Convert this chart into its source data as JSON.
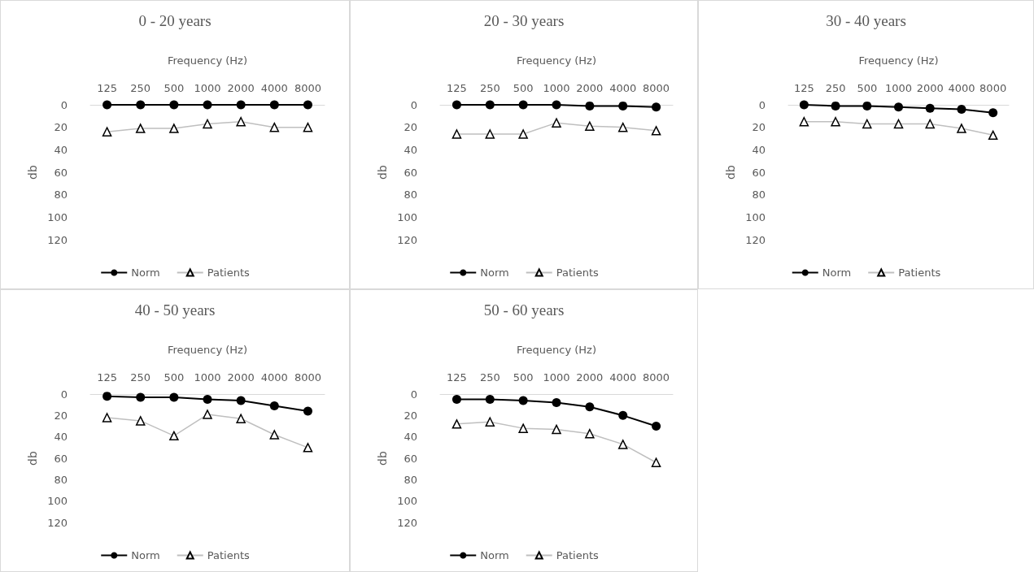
{
  "chart_data": [
    {
      "type": "line",
      "title": "0 - 20 years",
      "xlabel": "Frequency (Hz)",
      "ylabel": "db",
      "categories": [
        "125",
        "250",
        "500",
        "1000",
        "2000",
        "4000",
        "8000"
      ],
      "ylim": [
        120,
        0
      ],
      "yticks": [
        0,
        20,
        40,
        60,
        80,
        100,
        120
      ],
      "legend": "bottom",
      "series": [
        {
          "name": "Norm",
          "color": "#000000",
          "marker": "circle",
          "values": [
            0,
            0,
            0,
            0,
            0,
            0,
            0
          ]
        },
        {
          "name": "Patients",
          "color": "#bfbfbf",
          "marker": "triangle",
          "values": [
            24,
            21,
            21,
            17,
            15,
            20,
            20
          ]
        }
      ]
    },
    {
      "type": "line",
      "title": "20 - 30 years",
      "xlabel": "Frequency (Hz)",
      "ylabel": "db",
      "categories": [
        "125",
        "250",
        "500",
        "1000",
        "2000",
        "4000",
        "8000"
      ],
      "ylim": [
        120,
        0
      ],
      "yticks": [
        0,
        20,
        40,
        60,
        80,
        100,
        120
      ],
      "legend": "bottom",
      "series": [
        {
          "name": "Norm",
          "color": "#000000",
          "marker": "circle",
          "values": [
            0,
            0,
            0,
            0,
            1,
            1,
            2
          ]
        },
        {
          "name": "Patients",
          "color": "#bfbfbf",
          "marker": "triangle",
          "values": [
            26,
            26,
            26,
            16,
            19,
            20,
            23
          ]
        }
      ]
    },
    {
      "type": "line",
      "title": "30 - 40 years",
      "xlabel": "Frequency (Hz)",
      "ylabel": "db",
      "categories": [
        "125",
        "250",
        "500",
        "1000",
        "2000",
        "4000",
        "8000"
      ],
      "ylim": [
        120,
        0
      ],
      "yticks": [
        0,
        20,
        40,
        60,
        80,
        100,
        120
      ],
      "legend": "bottom",
      "series": [
        {
          "name": "Norm",
          "color": "#000000",
          "marker": "circle",
          "values": [
            0,
            1,
            1,
            2,
            3,
            4,
            7
          ]
        },
        {
          "name": "Patients",
          "color": "#bfbfbf",
          "marker": "triangle",
          "values": [
            15,
            15,
            17,
            17,
            17,
            21,
            27
          ]
        }
      ]
    },
    {
      "type": "line",
      "title": "40 - 50 years",
      "xlabel": "Frequency (Hz)",
      "ylabel": "db",
      "categories": [
        "125",
        "250",
        "500",
        "1000",
        "2000",
        "4000",
        "8000"
      ],
      "ylim": [
        120,
        0
      ],
      "yticks": [
        0,
        20,
        40,
        60,
        80,
        100,
        120
      ],
      "legend": "bottom",
      "series": [
        {
          "name": "Norm",
          "color": "#000000",
          "marker": "circle",
          "values": [
            2,
            3,
            3,
            5,
            6,
            11,
            16
          ]
        },
        {
          "name": "Patients",
          "color": "#bfbfbf",
          "marker": "triangle",
          "values": [
            22,
            25,
            39,
            19,
            23,
            38,
            50
          ]
        }
      ]
    },
    {
      "type": "line",
      "title": "50 - 60 years",
      "xlabel": "Frequency (Hz)",
      "ylabel": "db",
      "categories": [
        "125",
        "250",
        "500",
        "1000",
        "2000",
        "4000",
        "8000"
      ],
      "ylim": [
        120,
        0
      ],
      "yticks": [
        0,
        20,
        40,
        60,
        80,
        100,
        120
      ],
      "legend": "bottom",
      "series": [
        {
          "name": "Norm",
          "color": "#000000",
          "marker": "circle",
          "values": [
            5,
            5,
            6,
            8,
            12,
            20,
            30
          ]
        },
        {
          "name": "Patients",
          "color": "#bfbfbf",
          "marker": "triangle",
          "values": [
            28,
            26,
            32,
            33,
            37,
            47,
            64
          ]
        }
      ]
    }
  ]
}
